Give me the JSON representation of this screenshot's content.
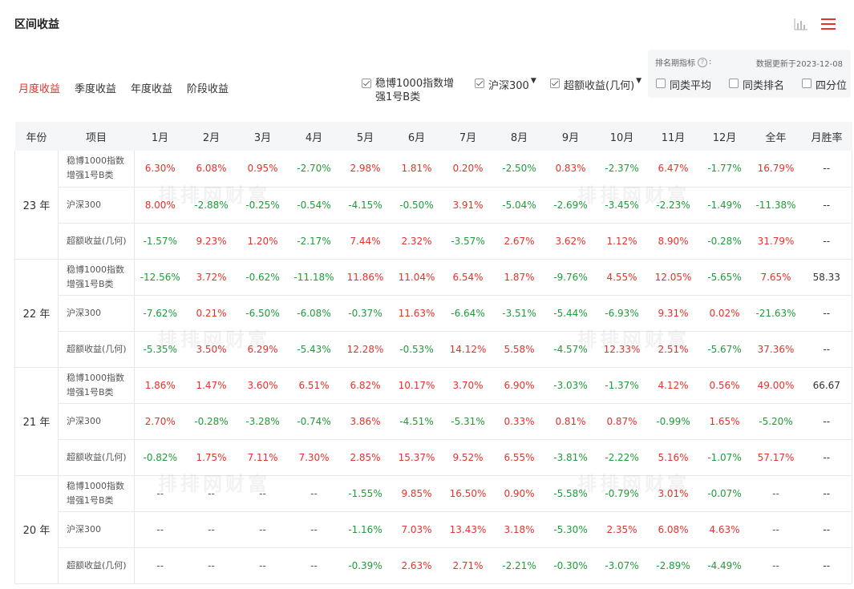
{
  "header": {
    "title": "区间收益",
    "icons": [
      "bar-chart-icon",
      "menu-icon"
    ]
  },
  "tabs": [
    {
      "label": "月度收益",
      "active": true
    },
    {
      "label": "季度收益",
      "active": false
    },
    {
      "label": "年度收益",
      "active": false
    },
    {
      "label": "阶段收益",
      "active": false
    }
  ],
  "compare": {
    "fund_label_line1": "稳博1000指数增",
    "fund_label_line2": "强1号B类",
    "index_label": "沪深300",
    "excess_label": "超额收益(几何)"
  },
  "ranking": {
    "label": "排名期指标",
    "colon": ":",
    "update_text": "数据更新于2023-12-08",
    "options": [
      "同类平均",
      "同类排名",
      "四分位"
    ]
  },
  "table": {
    "headers": [
      "年份",
      "项目",
      "1月",
      "2月",
      "3月",
      "4月",
      "5月",
      "6月",
      "7月",
      "8月",
      "9月",
      "10月",
      "11月",
      "12月",
      "全年",
      "月胜率"
    ],
    "item_labels": {
      "fund_line1": "稳博1000指数",
      "fund_line2": "增强1号B类",
      "index": "沪深300",
      "excess": "超额收益(几何)"
    },
    "years": [
      {
        "label": "23 年",
        "rows": [
          {
            "values": [
              "6.30%",
              "6.08%",
              "0.95%",
              "-2.70%",
              "2.98%",
              "1.81%",
              "0.20%",
              "-2.50%",
              "0.83%",
              "-2.37%",
              "6.47%",
              "-1.77%",
              "16.79%"
            ],
            "winrate": "--"
          },
          {
            "values": [
              "8.00%",
              "-2.88%",
              "-0.25%",
              "-0.54%",
              "-4.15%",
              "-0.50%",
              "3.91%",
              "-5.04%",
              "-2.69%",
              "-3.45%",
              "-2.23%",
              "-1.49%",
              "-11.38%"
            ],
            "winrate": "--"
          },
          {
            "values": [
              "-1.57%",
              "9.23%",
              "1.20%",
              "-2.17%",
              "7.44%",
              "2.32%",
              "-3.57%",
              "2.67%",
              "3.62%",
              "1.12%",
              "8.90%",
              "-0.28%",
              "31.79%"
            ],
            "winrate": "--"
          }
        ]
      },
      {
        "label": "22 年",
        "rows": [
          {
            "values": [
              "-12.56%",
              "3.72%",
              "-0.62%",
              "-11.18%",
              "11.86%",
              "11.04%",
              "6.54%",
              "1.87%",
              "-9.76%",
              "4.55%",
              "12.05%",
              "-5.65%",
              "7.65%"
            ],
            "winrate": "58.33"
          },
          {
            "values": [
              "-7.62%",
              "0.21%",
              "-6.50%",
              "-6.08%",
              "-0.37%",
              "11.63%",
              "-6.64%",
              "-3.51%",
              "-5.44%",
              "-6.93%",
              "9.31%",
              "0.02%",
              "-21.63%"
            ],
            "winrate": "--"
          },
          {
            "values": [
              "-5.35%",
              "3.50%",
              "6.29%",
              "-5.43%",
              "12.28%",
              "-0.53%",
              "14.12%",
              "5.58%",
              "-4.57%",
              "12.33%",
              "2.51%",
              "-5.67%",
              "37.36%"
            ],
            "winrate": "--"
          }
        ]
      },
      {
        "label": "21 年",
        "rows": [
          {
            "values": [
              "1.86%",
              "1.47%",
              "3.60%",
              "6.51%",
              "6.82%",
              "10.17%",
              "3.70%",
              "6.90%",
              "-3.03%",
              "-1.37%",
              "4.12%",
              "0.56%",
              "49.00%"
            ],
            "winrate": "66.67"
          },
          {
            "values": [
              "2.70%",
              "-0.28%",
              "-3.28%",
              "-0.74%",
              "3.86%",
              "-4.51%",
              "-5.31%",
              "0.33%",
              "0.81%",
              "0.87%",
              "-0.99%",
              "1.65%",
              "-5.20%"
            ],
            "winrate": "--"
          },
          {
            "values": [
              "-0.82%",
              "1.75%",
              "7.11%",
              "7.30%",
              "2.85%",
              "15.37%",
              "9.52%",
              "6.55%",
              "-3.81%",
              "-2.22%",
              "5.16%",
              "-1.07%",
              "57.17%"
            ],
            "winrate": "--"
          }
        ]
      },
      {
        "label": "20 年",
        "rows": [
          {
            "values": [
              "--",
              "--",
              "--",
              "--",
              "-1.55%",
              "9.85%",
              "16.50%",
              "0.90%",
              "-5.58%",
              "-0.79%",
              "3.01%",
              "-0.07%",
              "--"
            ],
            "winrate": "--"
          },
          {
            "values": [
              "--",
              "--",
              "--",
              "--",
              "-1.16%",
              "7.03%",
              "13.43%",
              "3.18%",
              "-5.30%",
              "2.35%",
              "6.08%",
              "4.63%",
              "--"
            ],
            "winrate": "--"
          },
          {
            "values": [
              "--",
              "--",
              "--",
              "--",
              "-0.39%",
              "2.63%",
              "2.71%",
              "-2.21%",
              "-0.30%",
              "-3.07%",
              "-2.89%",
              "-4.49%",
              "--"
            ],
            "winrate": "--"
          }
        ]
      }
    ]
  },
  "watermark": "排排网财富",
  "colors": {
    "positive": "#e5332c",
    "negative": "#1f9d3a",
    "accent": "#e5332c",
    "header_bg": "#f5f6f8"
  }
}
